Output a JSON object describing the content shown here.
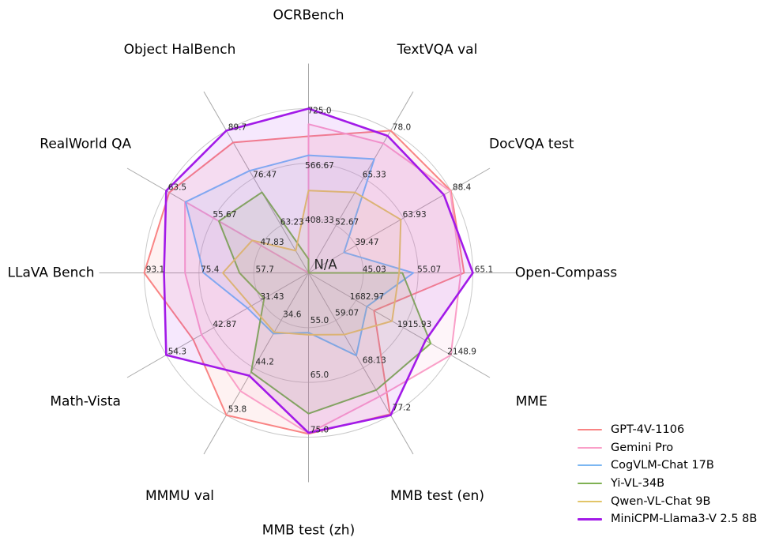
{
  "figure": {
    "background": "#ffffff"
  },
  "chart_data": {
    "type": "radar",
    "title": "",
    "center_label": "N/A",
    "grid": {
      "rings": 3,
      "grid_on": true,
      "ring_color": "#c9c9c9",
      "spoke_color": "#a8a8a8",
      "tick_label_color": "#262626",
      "axis_title_color": "#000000"
    },
    "legend": {
      "position": "bottom-right"
    },
    "axes": [
      {
        "label": "OCRBench",
        "axis_min": 250,
        "axis_max": 725,
        "tick_labels": [
          "725.0",
          "566.67",
          "408.33"
        ]
      },
      {
        "label": "TextVQA val",
        "axis_min": 40,
        "axis_max": 78.0,
        "tick_labels": [
          "78.0",
          "65.33",
          "52.67"
        ]
      },
      {
        "label": "DocVQA test",
        "axis_min": 15,
        "axis_max": 88.4,
        "tick_labels": [
          "88.4",
          "63.93",
          "39.47"
        ]
      },
      {
        "label": "Open-Compass",
        "axis_min": 35,
        "axis_max": 65.1,
        "tick_labels": [
          "65.1",
          "55.07",
          "45.03"
        ]
      },
      {
        "label": "MME",
        "axis_min": 1450,
        "axis_max": 2148.9,
        "tick_labels": [
          "2148.9",
          "1915.93",
          "1682.97"
        ]
      },
      {
        "label": "MMB test (en)",
        "axis_min": 50,
        "axis_max": 77.2,
        "tick_labels": [
          "77.2",
          "68.13",
          "59.07"
        ]
      },
      {
        "label": "MMB test (zh)",
        "axis_min": 45,
        "axis_max": 75.0,
        "tick_labels": [
          "75.0",
          "65.0",
          "55.0"
        ]
      },
      {
        "label": "MMMU val",
        "axis_min": 25,
        "axis_max": 53.8,
        "tick_labels": [
          "53.8",
          "44.2",
          "34.6"
        ]
      },
      {
        "label": "Math-Vista",
        "axis_min": 20,
        "axis_max": 54.3,
        "tick_labels": [
          "54.3",
          "42.87",
          "31.43"
        ]
      },
      {
        "label": "LLaVA Bench",
        "axis_min": 40,
        "axis_max": 93.1,
        "tick_labels": [
          "93.1",
          "75.4",
          "57.7"
        ]
      },
      {
        "label": "RealWorld QA",
        "axis_min": 40,
        "axis_max": 63.5,
        "tick_labels": [
          "63.5",
          "55.67",
          "47.83"
        ]
      },
      {
        "label": "Object HalBench",
        "axis_min": 50,
        "axis_max": 89.7,
        "tick_labels": [
          "89.7",
          "76.47",
          "63.23"
        ]
      }
    ],
    "series": [
      {
        "name": "GPT-4V-1106",
        "color": "#f98484",
        "line_width": 2,
        "values": [
          645,
          78.0,
          88.4,
          63.5,
          1771.5,
          77.0,
          74.4,
          53.8,
          47.8,
          93.1,
          63.0,
          86.4
        ]
      },
      {
        "name": "Gemini Pro",
        "color": "#fa9fc8",
        "line_width": 2,
        "values": [
          680,
          74.6,
          88.1,
          62.9,
          2148.9,
          73.6,
          74.3,
          48.9,
          45.8,
          79.9,
          60.4,
          null
        ]
      },
      {
        "name": "CogVLM-Chat 17B",
        "color": "#7cb7f2",
        "line_width": 2,
        "values": [
          590,
          70.4,
          33.3,
          54.2,
          1736.6,
          65.8,
          55.9,
          37.3,
          34.7,
          73.9,
          60.3,
          78.5
        ]
      },
      {
        "name": "Yi-VL-34B",
        "color": "#7fb153",
        "line_width": 2,
        "values": [
          290,
          null,
          null,
          52.2,
          2050.2,
          72.4,
          70.7,
          45.1,
          30.7,
          62.3,
          54.8,
          72.5
        ]
      },
      {
        "name": "Qwen-VL-Chat 9B",
        "color": "#e2c568",
        "line_width": 2,
        "values": [
          488,
          61.5,
          62.6,
          51.6,
          1860.0,
          61.8,
          56.3,
          37.0,
          33.8,
          67.7,
          49.3,
          56.2
        ]
      },
      {
        "name": "MiniCPM-Llama3-V 2.5 8B",
        "color": "#a21ae8",
        "line_width": 2.6,
        "values": [
          725,
          76.6,
          84.8,
          65.1,
          2024.6,
          77.2,
          74.2,
          45.8,
          54.3,
          86.7,
          63.5,
          89.7
        ]
      }
    ]
  }
}
